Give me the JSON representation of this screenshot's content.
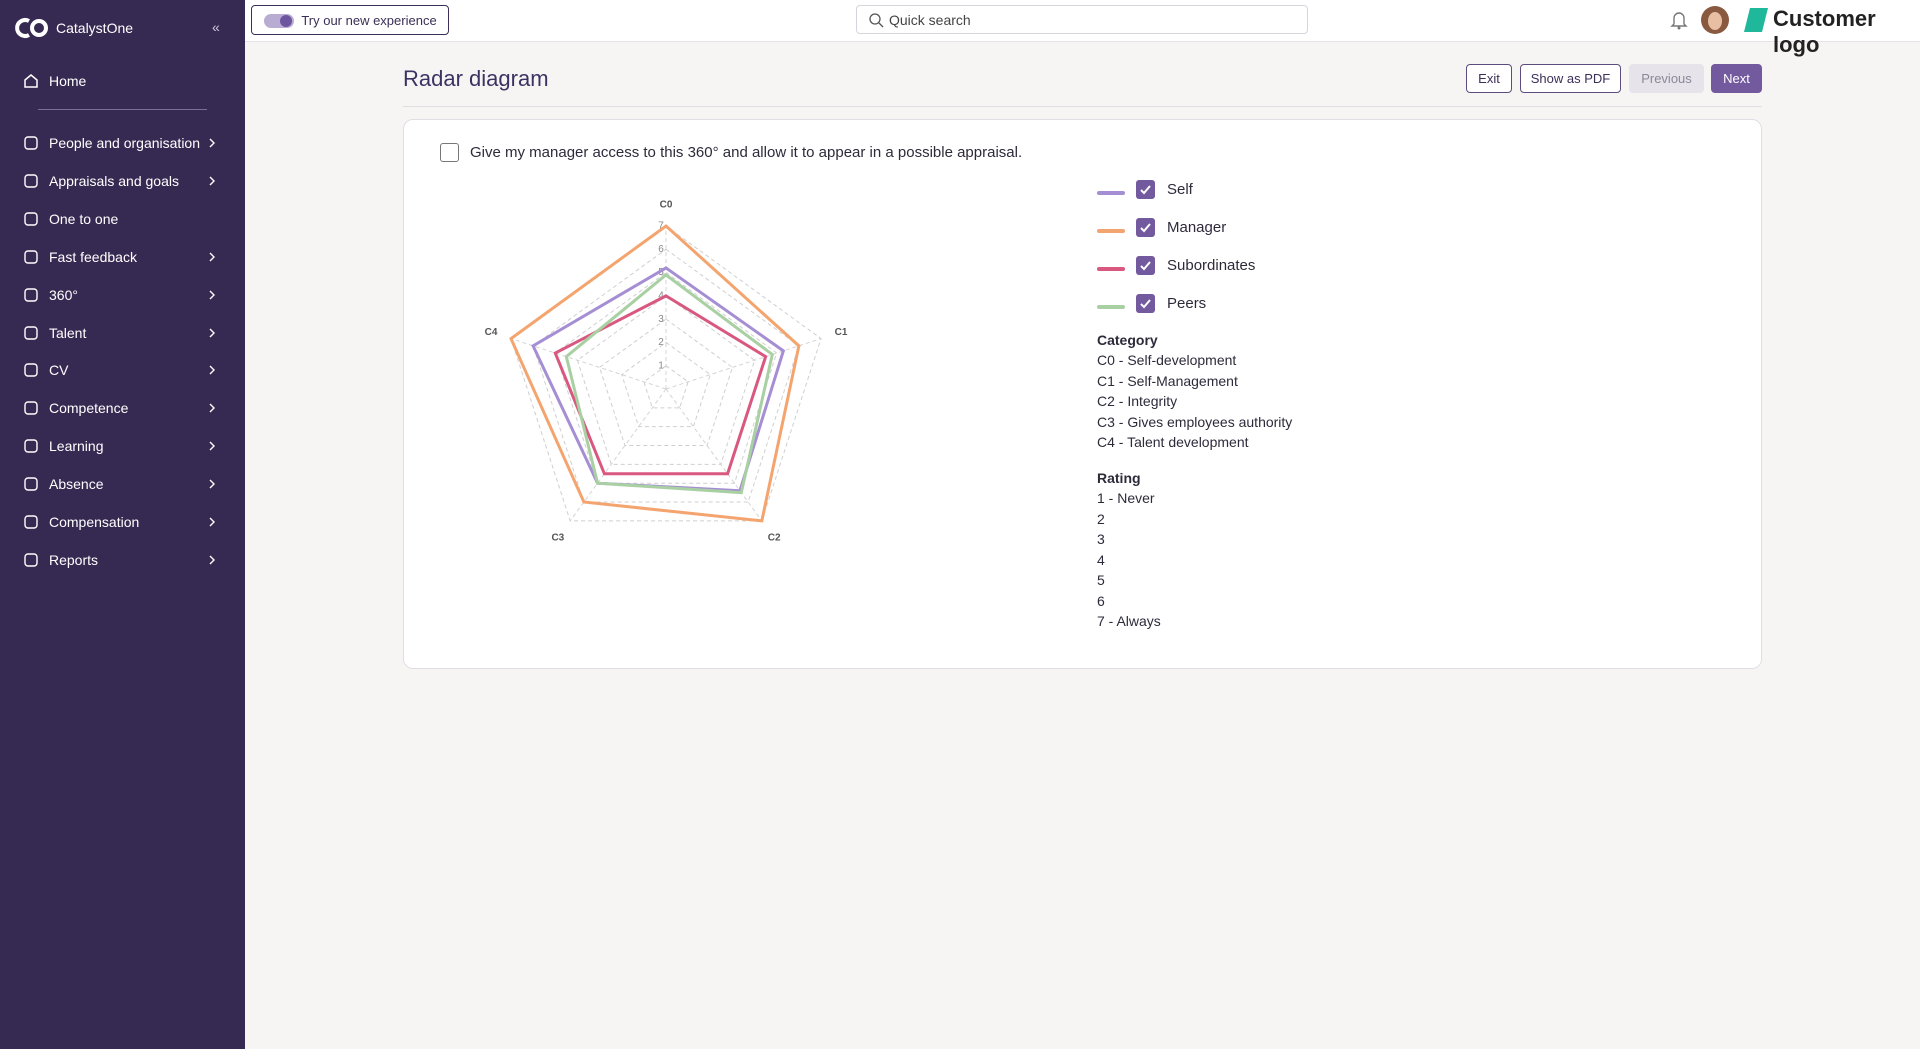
{
  "sidebar": {
    "brand": "CatalystOne",
    "collapse": "«",
    "home": "Home",
    "items": [
      {
        "label": "People and organisation",
        "has_submenu": true
      },
      {
        "label": "Appraisals and goals",
        "has_submenu": true
      },
      {
        "label": "One to one",
        "has_submenu": false
      },
      {
        "label": "Fast feedback",
        "has_submenu": true
      },
      {
        "label": "360°",
        "has_submenu": true
      },
      {
        "label": "Talent",
        "has_submenu": true
      },
      {
        "label": "CV",
        "has_submenu": true
      },
      {
        "label": "Competence",
        "has_submenu": true
      },
      {
        "label": "Learning",
        "has_submenu": true
      },
      {
        "label": "Absence",
        "has_submenu": true
      },
      {
        "label": "Compensation",
        "has_submenu": true
      },
      {
        "label": "Reports",
        "has_submenu": true
      }
    ]
  },
  "topbar": {
    "toggle": "Try our new experience",
    "search": "Quick search",
    "customer_logo": "Customer logo"
  },
  "page": {
    "title": "Radar diagram",
    "buttons": [
      "Exit",
      "Show as PDF",
      "Previous",
      "Next"
    ],
    "consent": "Give my manager access to this 360° and allow it to appear in a possible appraisal."
  },
  "chart_data": {
    "type": "radar",
    "categories": [
      "C0",
      "C1",
      "C2",
      "C3",
      "C4"
    ],
    "rlim": [
      0,
      7
    ],
    "rticks": [
      1,
      2,
      3,
      4,
      5,
      6,
      7
    ],
    "grid": true,
    "series": [
      {
        "name": "Self",
        "color": "#a58ed3",
        "values": [
          5.2,
          5.3,
          5.4,
          5,
          6
        ]
      },
      {
        "name": "Manager",
        "color": "#f4a46e",
        "values": [
          7,
          6,
          7,
          6,
          7
        ]
      },
      {
        "name": "Subordinates",
        "color": "#d9587f",
        "values": [
          4,
          4.5,
          4.5,
          4.5,
          5
        ]
      },
      {
        "name": "Peers",
        "color": "#a9d0a2",
        "values": [
          4.9,
          4.8,
          5.5,
          5,
          4.5
        ]
      }
    ]
  },
  "key": {
    "category_heading": "Category",
    "categories": [
      "C0 - Self-development",
      "C1 - Self-Management",
      "C2 - Integrity",
      "C3 - Gives employees authority",
      "C4 - Talent development"
    ],
    "rating_heading": "Rating",
    "ratings": [
      "1 - Never",
      "2",
      "3",
      "4",
      "5",
      "6",
      "7 - Always"
    ]
  }
}
